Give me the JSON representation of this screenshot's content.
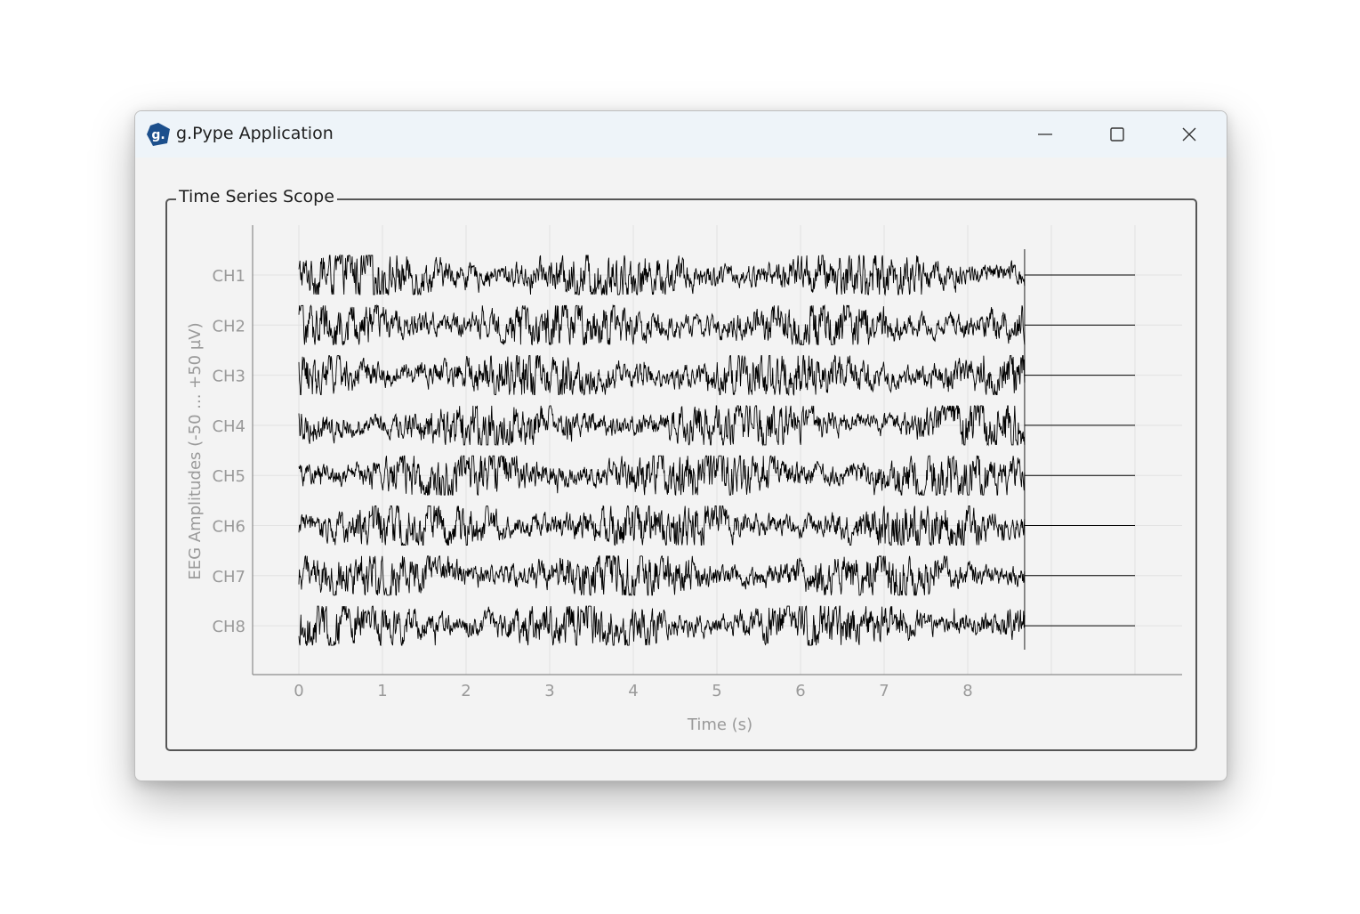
{
  "window": {
    "title": "g.Pype Application",
    "app_icon_letter": "g."
  },
  "scope": {
    "group_title": "Time Series Scope"
  },
  "chart_data": {
    "type": "line",
    "xlabel": "Time (s)",
    "ylabel": "EEG Amplitudes (-50 ... +50 µV)",
    "x_ticks": [
      "0",
      "1",
      "2",
      "3",
      "4",
      "5",
      "6",
      "7",
      "8"
    ],
    "xlim": [
      -0.55,
      10.55
    ],
    "x_gridlines": [
      0,
      1,
      2,
      3,
      4,
      5,
      6,
      7,
      8,
      9,
      10
    ],
    "signal_end_s": 8.68,
    "flat_until_s": 10.0,
    "amplitude_range_uV": [
      -50,
      50
    ],
    "grid": true,
    "channels": [
      "CH1",
      "CH2",
      "CH3",
      "CH4",
      "CH5",
      "CH6",
      "CH7",
      "CH8"
    ]
  }
}
